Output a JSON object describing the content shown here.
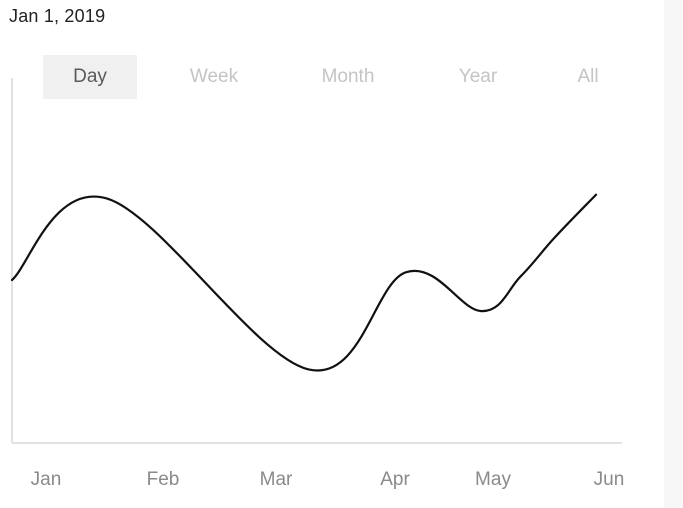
{
  "header": {
    "date": "Jan 1, 2019"
  },
  "range_tabs": [
    {
      "label": "Day",
      "active": true
    },
    {
      "label": "Week",
      "active": false
    },
    {
      "label": "Month",
      "active": false
    },
    {
      "label": "Year",
      "active": false
    },
    {
      "label": "All",
      "active": false
    }
  ],
  "colors": {
    "line": "#111111",
    "axis": "#d9d9d9",
    "active_tab_bg": "#f0f0f0",
    "inactive_tab_text": "#c4c4c4",
    "tick_text": "#8a8a8a"
  },
  "chart_data": {
    "type": "line",
    "title": "",
    "xlabel": "",
    "ylabel": "",
    "x_ticks": [
      "Jan",
      "Feb",
      "Mar",
      "Apr",
      "May",
      "Jun"
    ],
    "x": [
      0,
      0.63,
      2.27,
      3.11,
      3.88,
      4.27,
      4.6,
      5.0
    ],
    "series": [
      {
        "values": [
          0.42,
          0.63,
          0.19,
          0.44,
          0.34,
          0.43,
          0.53,
          0.64
        ]
      }
    ],
    "ylim": [
      0,
      1
    ],
    "grid": false,
    "legend": "none"
  }
}
